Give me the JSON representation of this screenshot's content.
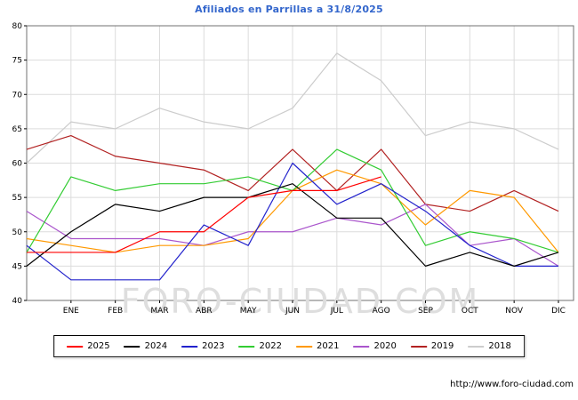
{
  "watermark": "FORO-CIUDAD.COM",
  "footer_url": "http://www.foro-ciudad.com",
  "chart_data": {
    "type": "line",
    "title": "Afiliados en Parrillas a 31/8/2025",
    "title_color": "#3366cc",
    "categories": [
      "",
      "ENE",
      "FEB",
      "MAR",
      "ABR",
      "MAY",
      "JUN",
      "JUL",
      "AGO",
      "SEP",
      "OCT",
      "NOV",
      "DIC"
    ],
    "xlabel": "",
    "ylabel": "",
    "ylim": [
      40,
      80
    ],
    "ytick_step": 5,
    "grid": true,
    "legend_position": "bottom",
    "series": [
      {
        "name": "2025",
        "color": "#ff0000",
        "values": [
          47,
          47,
          47,
          50,
          50,
          55,
          56,
          56,
          58
        ]
      },
      {
        "name": "2024",
        "color": "#000000",
        "values": [
          45,
          50,
          54,
          53,
          55,
          55,
          57,
          52,
          52,
          45,
          47,
          45,
          47
        ]
      },
      {
        "name": "2023",
        "color": "#2222cc",
        "values": [
          48,
          43,
          43,
          43,
          51,
          48,
          60,
          54,
          57,
          53,
          48,
          45,
          45
        ]
      },
      {
        "name": "2022",
        "color": "#33cc33",
        "values": [
          47,
          58,
          56,
          57,
          57,
          58,
          56,
          62,
          59,
          48,
          50,
          49,
          47
        ]
      },
      {
        "name": "2021",
        "color": "#ff9900",
        "values": [
          49,
          48,
          47,
          48,
          48,
          49,
          56,
          59,
          57,
          51,
          56,
          55,
          47
        ]
      },
      {
        "name": "2020",
        "color": "#aa55cc",
        "values": [
          53,
          49,
          49,
          49,
          48,
          50,
          50,
          52,
          51,
          54,
          48,
          49,
          45
        ]
      },
      {
        "name": "2019",
        "color": "#b22222",
        "values": [
          62,
          64,
          61,
          60,
          59,
          56,
          62,
          56,
          62,
          54,
          53,
          56,
          53
        ]
      },
      {
        "name": "2018",
        "color": "#cccccc",
        "values": [
          60,
          66,
          65,
          68,
          66,
          65,
          68,
          76,
          72,
          64,
          66,
          65,
          62
        ]
      }
    ]
  }
}
